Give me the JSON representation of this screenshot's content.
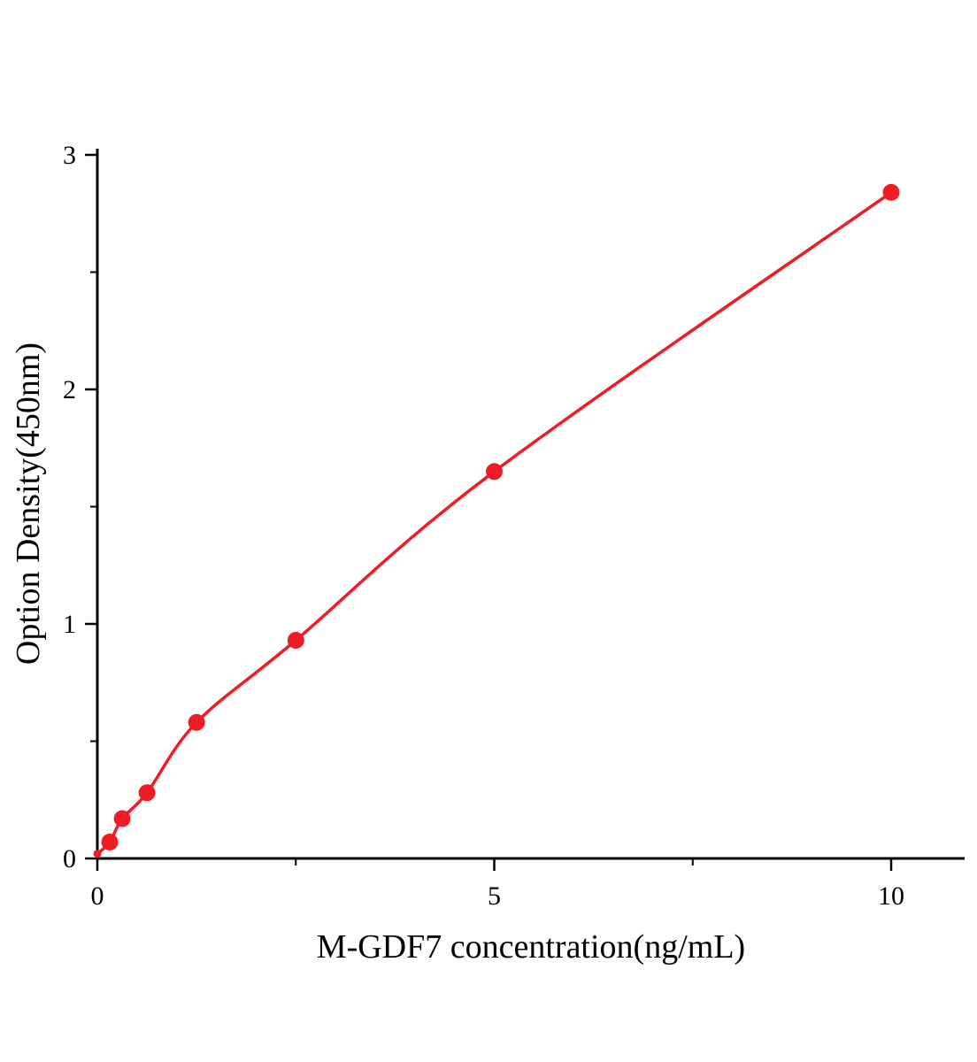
{
  "chart_data": {
    "type": "scatter",
    "title": "",
    "xlabel": "M-GDF7 concentration(ng/mL)",
    "ylabel": "Option Density(450nm)",
    "x": [
      0,
      0.156,
      0.313,
      0.625,
      1.25,
      2.5,
      5,
      10
    ],
    "y": [
      0.02,
      0.07,
      0.17,
      0.28,
      0.58,
      0.93,
      1.65,
      2.84
    ],
    "xlim": [
      0,
      10.93
    ],
    "ylim": [
      0,
      3.03
    ],
    "x_major_ticks": [
      0,
      5,
      10
    ],
    "x_minor_ticks": [
      2.5,
      7.5
    ],
    "y_major_ticks": [
      0,
      1,
      2,
      3
    ],
    "y_minor_ticks": [
      0.5,
      1.5,
      2.5
    ],
    "line_color": "#ee1c25",
    "marker_color": "#ee1c25",
    "axis_color": "#000000",
    "grid": false,
    "legend": null,
    "curve_style": "smooth"
  }
}
